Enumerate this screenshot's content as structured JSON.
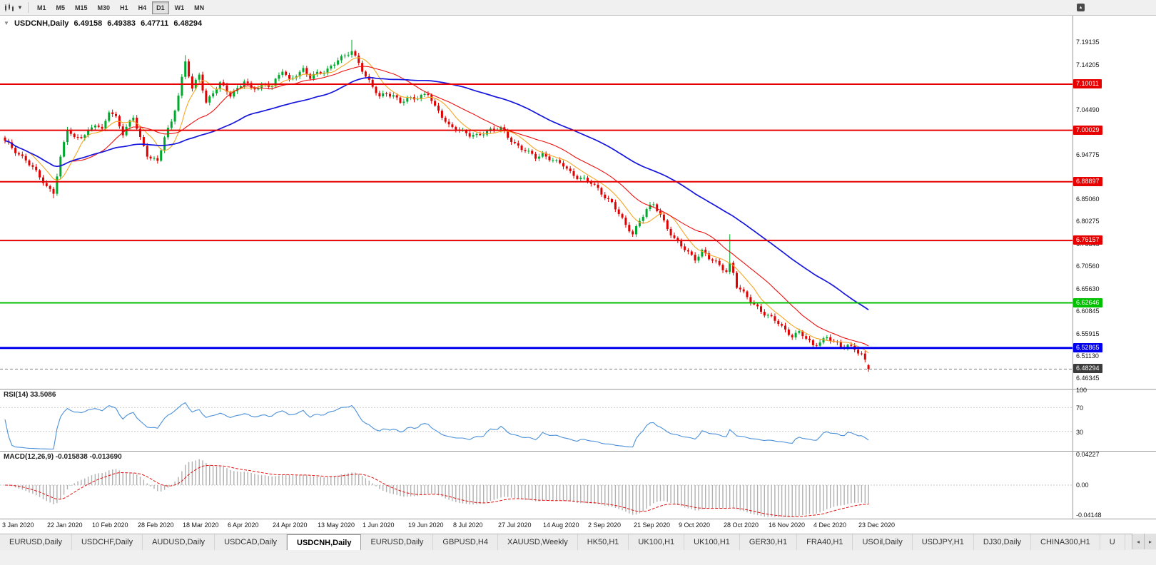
{
  "toolbar": {
    "timeframes": [
      "M1",
      "M5",
      "M15",
      "M30",
      "H1",
      "H4",
      "D1",
      "W1",
      "MN"
    ],
    "active_timeframe": "D1",
    "caret": "▼",
    "overflow": "▴"
  },
  "chart_header": {
    "collapse_arrow": "▼",
    "symbol": "USDCNH,Daily",
    "open": "6.49158",
    "high": "6.49383",
    "low": "6.47711",
    "close": "6.48294"
  },
  "price_axis": {
    "ticks": [
      {
        "label": "7.19135",
        "price": 7.19135
      },
      {
        "label": "7.14205",
        "price": 7.14205
      },
      {
        "label": "7.04490",
        "price": 7.0449
      },
      {
        "label": "6.94775",
        "price": 6.94775
      },
      {
        "label": "6.85060",
        "price": 6.8506
      },
      {
        "label": "6.80275",
        "price": 6.80275
      },
      {
        "label": "6.75345",
        "price": 6.75345
      },
      {
        "label": "6.70560",
        "price": 6.7056
      },
      {
        "label": "6.65630",
        "price": 6.6563
      },
      {
        "label": "6.60845",
        "price": 6.60845
      },
      {
        "label": "6.55915",
        "price": 6.55915
      },
      {
        "label": "6.51130",
        "price": 6.5113
      },
      {
        "label": "6.46345",
        "price": 6.46345
      }
    ],
    "badges": [
      {
        "label": "7.10011",
        "price": 7.10011,
        "color": "#e60000",
        "line_width": 2
      },
      {
        "label": "7.00029",
        "price": 7.00029,
        "color": "#e60000",
        "line_width": 2
      },
      {
        "label": "6.88897",
        "price": 6.88897,
        "color": "#e60000",
        "line_width": 2
      },
      {
        "label": "6.76157",
        "price": 6.76157,
        "color": "#e60000",
        "line_width": 2
      },
      {
        "label": "6.62646",
        "price": 6.62646,
        "color": "#00c000",
        "line_width": 2
      },
      {
        "label": "6.52865",
        "price": 6.52865,
        "color": "#0000ee",
        "line_width": 3
      }
    ],
    "current": {
      "label": "6.48294",
      "price": 6.48294,
      "color": "#3c3c3c"
    }
  },
  "rsi_pane": {
    "label": "RSI(14) 33.5086"
  },
  "macd_pane": {
    "label": "MACD(12,26,9) -0.015838 -0.013690"
  },
  "tab_bar": {
    "tabs": [
      "EURUSD,Daily",
      "USDCHF,Daily",
      "AUDUSD,Daily",
      "USDCAD,Daily",
      "USDCNH,Daily",
      "EURUSD,Daily",
      "GBPUSD,H4",
      "XAUUSD,Weekly",
      "HK50,H1",
      "UK100,H1",
      "UK100,H1",
      "GER30,H1",
      "FRA40,H1",
      "USOil,Daily",
      "USDJPY,H1",
      "DJ30,Daily",
      "CHINA300,H1",
      "U"
    ],
    "active_index": 4,
    "scroll_left": "◂",
    "scroll_right": "▸"
  },
  "chart_data": {
    "type": "candlestick",
    "symbol": "USDCNH",
    "timeframe": "Daily",
    "candle_count": 250,
    "ylim": [
      6.448,
      7.2207
    ],
    "up_color": "#00a82d",
    "down_color": "#e00000",
    "price_path": [
      [
        0,
        6.975
      ],
      [
        3,
        6.955
      ],
      [
        6,
        6.938
      ],
      [
        9,
        6.908
      ],
      [
        12,
        6.878
      ],
      [
        14,
        6.868
      ],
      [
        16,
        6.94
      ],
      [
        18,
        7.002
      ],
      [
        20,
        6.982
      ],
      [
        23,
        6.993
      ],
      [
        26,
        7.012
      ],
      [
        28,
        6.998
      ],
      [
        30,
        7.044
      ],
      [
        32,
        7.03
      ],
      [
        34,
        6.992
      ],
      [
        37,
        7.028
      ],
      [
        39,
        6.985
      ],
      [
        41,
        6.948
      ],
      [
        44,
        6.93
      ],
      [
        46,
        6.985
      ],
      [
        48,
        7.02
      ],
      [
        50,
        7.078
      ],
      [
        52,
        7.148
      ],
      [
        54,
        7.088
      ],
      [
        56,
        7.122
      ],
      [
        58,
        7.062
      ],
      [
        60,
        7.082
      ],
      [
        62,
        7.1
      ],
      [
        65,
        7.077
      ],
      [
        67,
        7.092
      ],
      [
        69,
        7.108
      ],
      [
        71,
        7.088
      ],
      [
        73,
        7.092
      ],
      [
        75,
        7.102
      ],
      [
        77,
        7.098
      ],
      [
        80,
        7.128
      ],
      [
        82,
        7.108
      ],
      [
        84,
        7.123
      ],
      [
        86,
        7.133
      ],
      [
        88,
        7.113
      ],
      [
        90,
        7.122
      ],
      [
        92,
        7.128
      ],
      [
        94,
        7.14
      ],
      [
        96,
        7.153
      ],
      [
        98,
        7.158
      ],
      [
        100,
        7.173
      ],
      [
        102,
        7.148
      ],
      [
        104,
        7.118
      ],
      [
        106,
        7.092
      ],
      [
        108,
        7.072
      ],
      [
        110,
        7.082
      ],
      [
        112,
        7.077
      ],
      [
        114,
        7.06
      ],
      [
        116,
        7.066
      ],
      [
        118,
        7.07
      ],
      [
        120,
        7.077
      ],
      [
        122,
        7.08
      ],
      [
        124,
        7.048
      ],
      [
        126,
        7.03
      ],
      [
        128,
        7.012
      ],
      [
        130,
        7.006
      ],
      [
        132,
        6.995
      ],
      [
        134,
        6.988
      ],
      [
        136,
        6.99
      ],
      [
        138,
        6.997
      ],
      [
        140,
        7.0
      ],
      [
        143,
        7.003
      ],
      [
        145,
        6.988
      ],
      [
        147,
        6.972
      ],
      [
        149,
        6.96
      ],
      [
        151,
        6.95
      ],
      [
        153,
        6.942
      ],
      [
        155,
        6.95
      ],
      [
        157,
        6.94
      ],
      [
        159,
        6.93
      ],
      [
        161,
        6.924
      ],
      [
        163,
        6.91
      ],
      [
        165,
        6.9
      ],
      [
        167,
        6.893
      ],
      [
        169,
        6.885
      ],
      [
        171,
        6.873
      ],
      [
        173,
        6.858
      ],
      [
        175,
        6.843
      ],
      [
        177,
        6.818
      ],
      [
        179,
        6.793
      ],
      [
        181,
        6.778
      ],
      [
        183,
        6.805
      ],
      [
        185,
        6.828
      ],
      [
        187,
        6.838
      ],
      [
        189,
        6.818
      ],
      [
        191,
        6.79
      ],
      [
        193,
        6.765
      ],
      [
        195,
        6.748
      ],
      [
        197,
        6.735
      ],
      [
        199,
        6.723
      ],
      [
        201,
        6.74
      ],
      [
        203,
        6.722
      ],
      [
        205,
        6.712
      ],
      [
        207,
        6.702
      ],
      [
        208,
        6.697
      ],
      [
        209,
        6.712
      ],
      [
        210,
        6.692
      ],
      [
        211,
        6.662
      ],
      [
        213,
        6.645
      ],
      [
        215,
        6.63
      ],
      [
        217,
        6.618
      ],
      [
        219,
        6.603
      ],
      [
        221,
        6.592
      ],
      [
        223,
        6.582
      ],
      [
        225,
        6.568
      ],
      [
        227,
        6.556
      ],
      [
        229,
        6.562
      ],
      [
        231,
        6.548
      ],
      [
        233,
        6.534
      ],
      [
        235,
        6.544
      ],
      [
        237,
        6.552
      ],
      [
        239,
        6.54
      ],
      [
        241,
        6.53
      ],
      [
        243,
        6.537
      ],
      [
        245,
        6.528
      ],
      [
        246,
        6.52
      ],
      [
        247,
        6.513
      ],
      [
        248,
        6.498
      ],
      [
        249,
        6.483
      ]
    ],
    "high_overrides": [
      [
        52,
        7.163
      ],
      [
        100,
        7.1965
      ],
      [
        209,
        6.775
      ]
    ],
    "low_overrides": [
      [
        14,
        6.853
      ]
    ],
    "last_candle": {
      "open": 6.49158,
      "high": 6.49383,
      "low": 6.47711,
      "close": 6.48294
    },
    "moving_averages": [
      {
        "name": "MA-fast",
        "period": 8,
        "color": "#f5a623"
      },
      {
        "name": "MA-mid",
        "period": 20,
        "color": "#ee1111"
      },
      {
        "name": "MA-slow",
        "period": 55,
        "color": "#1515dd"
      }
    ],
    "indicators": {
      "rsi": {
        "period": 14,
        "current": 33.5086,
        "color": "#4a90d9",
        "range": [
          0,
          100
        ],
        "levels": [
          70,
          30
        ],
        "axis_labels": [
          {
            "label": "100",
            "value": 100
          },
          {
            "label": "70",
            "value": 70
          },
          {
            "label": "30",
            "value": 30
          }
        ]
      },
      "macd": {
        "fast": 12,
        "slow": 26,
        "signal": 9,
        "macd_value": -0.015838,
        "signal_value": -0.01369,
        "ylim": [
          -0.0415,
          0.0425
        ],
        "histogram_color": "#b0b0b0",
        "signal_color": "#e01010",
        "axis_labels": [
          {
            "label": "0.04227",
            "value": 0.04227
          },
          {
            "label": "0.00",
            "value": 0
          },
          {
            "label": "-0.04148",
            "value": -0.04148
          }
        ]
      }
    },
    "x_label_step": 13,
    "x_labels": [
      "3 Jan 2020",
      "22 Jan 2020",
      "10 Feb 2020",
      "28 Feb 2020",
      "18 Mar 2020",
      "6 Apr 2020",
      "24 Apr 2020",
      "13 May 2020",
      "1 Jun 2020",
      "19 Jun 2020",
      "8 Jul 2020",
      "27 Jul 2020",
      "14 Aug 2020",
      "2 Sep 2020",
      "21 Sep 2020",
      "9 Oct 2020",
      "28 Oct 2020",
      "16 Nov 2020",
      "4 Dec 2020",
      "23 Dec 2020"
    ]
  }
}
